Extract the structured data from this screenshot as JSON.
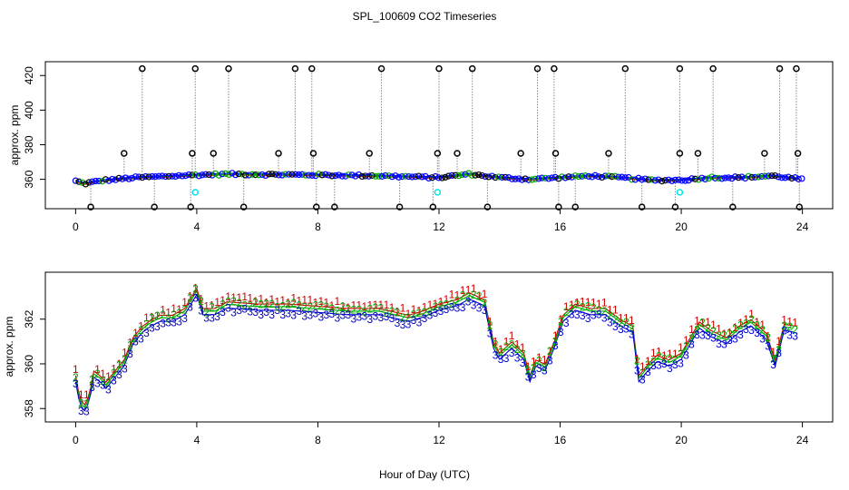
{
  "chart_data": [
    {
      "type": "scatter",
      "title": "SPL_100609  CO2 Timeseries",
      "xlabel": "",
      "ylabel": "approx. ppm",
      "xlim": [
        -1,
        25
      ],
      "ylim": [
        343,
        428
      ],
      "xticks": [
        0,
        4,
        8,
        12,
        16,
        20,
        24
      ],
      "yticks": [
        360,
        380,
        400,
        420
      ],
      "grid": false,
      "series_colors": {
        "sample": "#000000",
        "line1": "#ff0000",
        "line2": "#00aa00",
        "line3": "#0000ff",
        "cal": "#00e5ee"
      },
      "baseline": [
        [
          0,
          359
        ],
        [
          0.3,
          357.5
        ],
        [
          0.6,
          358.5
        ],
        [
          1,
          359.5
        ],
        [
          2,
          361
        ],
        [
          4,
          362.5
        ],
        [
          5,
          363
        ],
        [
          8,
          362.5
        ],
        [
          10,
          362
        ],
        [
          12,
          361
        ],
        [
          13,
          363
        ],
        [
          14,
          361
        ],
        [
          15,
          360
        ],
        [
          16,
          361
        ],
        [
          17,
          362
        ],
        [
          18,
          361
        ],
        [
          19,
          359.5
        ],
        [
          20,
          359.5
        ],
        [
          21,
          361
        ],
        [
          22,
          361
        ],
        [
          23,
          362
        ],
        [
          24,
          360
        ]
      ],
      "flagged_high_hours": [
        2.2,
        3.95,
        5.05,
        7.25,
        7.8,
        10.1,
        12.0,
        13.1,
        15.25,
        15.8,
        18.15,
        19.95,
        21.05,
        23.25,
        23.8
      ],
      "flagged_mid_hours": [
        1.6,
        3.85,
        4.55,
        6.7,
        7.85,
        9.7,
        11.95,
        12.6,
        14.7,
        15.85,
        17.6,
        19.95,
        20.55,
        22.75,
        23.85
      ],
      "flagged_low_hours": [
        0.5,
        2.6,
        3.8,
        5.55,
        7.95,
        8.55,
        10.7,
        11.8,
        13.6,
        15.95,
        16.5,
        18.7,
        19.8,
        21.7,
        23.9
      ],
      "cal_points": [
        [
          3.95,
          352.5
        ],
        [
          11.95,
          352.5
        ],
        [
          19.95,
          352.5
        ]
      ],
      "value_levels": {
        "high": 424,
        "mid": 375,
        "low": 344
      }
    },
    {
      "type": "line",
      "title": "",
      "xlabel": "Hour of Day (UTC)",
      "ylabel": "approx. ppm",
      "xlim": [
        -1,
        25
      ],
      "ylim": [
        357.4,
        364.1
      ],
      "xticks": [
        0,
        4,
        8,
        12,
        16,
        20,
        24
      ],
      "yticks": [
        358,
        360,
        362
      ],
      "series": [
        {
          "name": "1",
          "color": "#cc0000",
          "offset": 0.35
        },
        {
          "name": "2",
          "color": "#00aa00",
          "offset": 0.12
        },
        {
          "name": "3",
          "color": "#0000cc",
          "offset": -0.2
        }
      ],
      "points": [
        [
          0,
          359.3
        ],
        [
          0.15,
          358.2
        ],
        [
          0.3,
          358.0
        ],
        [
          0.45,
          358.4
        ],
        [
          0.6,
          359.5
        ],
        [
          0.8,
          359.3
        ],
        [
          1.0,
          359.0
        ],
        [
          1.3,
          359.5
        ],
        [
          1.6,
          360.0
        ],
        [
          1.9,
          361.0
        ],
        [
          2.2,
          361.5
        ],
        [
          2.5,
          361.8
        ],
        [
          2.8,
          362.0
        ],
        [
          3.2,
          362.0
        ],
        [
          3.6,
          362.3
        ],
        [
          4.0,
          363.2
        ],
        [
          4.2,
          362.3
        ],
        [
          4.6,
          362.3
        ],
        [
          5.0,
          362.6
        ],
        [
          6.0,
          362.5
        ],
        [
          7.0,
          362.5
        ],
        [
          8.0,
          362.4
        ],
        [
          9.0,
          362.3
        ],
        [
          10.0,
          362.3
        ],
        [
          11.0,
          362.0
        ],
        [
          11.5,
          362.2
        ],
        [
          12.0,
          362.5
        ],
        [
          12.6,
          362.7
        ],
        [
          13.0,
          363.0
        ],
        [
          13.5,
          362.7
        ],
        [
          13.8,
          360.8
        ],
        [
          14.0,
          360.3
        ],
        [
          14.4,
          360.8
        ],
        [
          14.8,
          360.3
        ],
        [
          15.0,
          359.3
        ],
        [
          15.2,
          360.0
        ],
        [
          15.5,
          359.8
        ],
        [
          15.8,
          360.8
        ],
        [
          16.1,
          362.0
        ],
        [
          16.5,
          362.5
        ],
        [
          17.0,
          362.3
        ],
        [
          17.5,
          362.3
        ],
        [
          18.0,
          361.8
        ],
        [
          18.4,
          361.5
        ],
        [
          18.6,
          359.3
        ],
        [
          18.9,
          359.8
        ],
        [
          19.2,
          360.2
        ],
        [
          19.6,
          360.0
        ],
        [
          20.0,
          360.3
        ],
        [
          20.3,
          361.0
        ],
        [
          20.6,
          361.7
        ],
        [
          21.0,
          361.3
        ],
        [
          21.5,
          361.0
        ],
        [
          21.9,
          361.5
        ],
        [
          22.3,
          361.8
        ],
        [
          22.8,
          361.2
        ],
        [
          23.1,
          360.0
        ],
        [
          23.4,
          361.6
        ],
        [
          23.8,
          361.5
        ]
      ]
    }
  ]
}
